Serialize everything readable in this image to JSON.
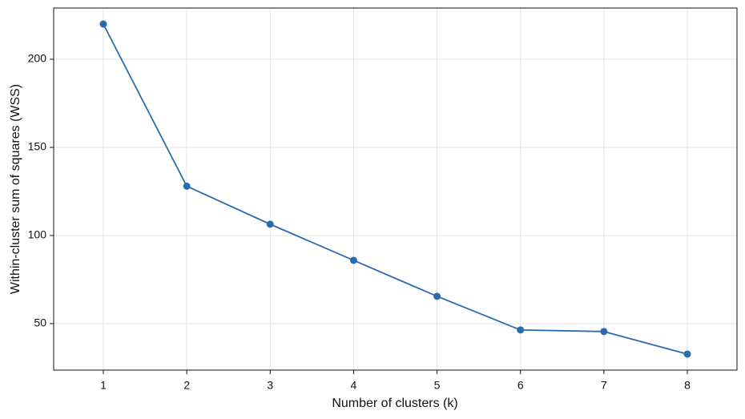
{
  "chart_data": {
    "type": "line",
    "x_label": "Number of clusters (k)",
    "y_label": "Within-cluster sum of squares (WSS)",
    "x": [
      1,
      2,
      3,
      4,
      5,
      6,
      7,
      8
    ],
    "series": [
      {
        "name": "WSS",
        "color": "#2a6bb0",
        "values": [
          220,
          128,
          106.4,
          85.9,
          65.5,
          46.4,
          45.5,
          32.7
        ]
      }
    ],
    "xlim": [
      0.405,
      8.595
    ],
    "xticks": [
      1,
      2,
      3,
      4,
      5,
      6,
      7,
      8
    ],
    "ylim": [
      23.6,
      229.1
    ],
    "yticks": [
      50,
      100,
      150,
      200
    ],
    "grid": true
  }
}
